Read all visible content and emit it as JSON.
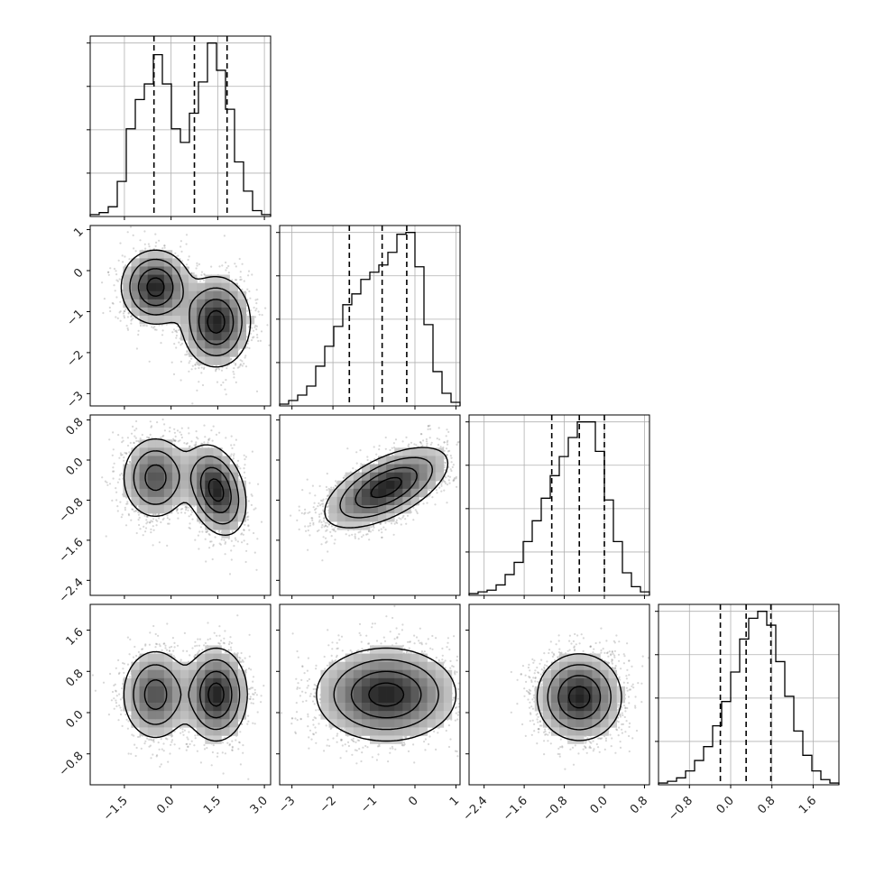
{
  "chart_data": {
    "type": "corner",
    "n_params": 4,
    "params": [
      {
        "range": [
          -2.6,
          3.2
        ],
        "ticks": [
          -1.5,
          0.0,
          1.5,
          3.0
        ],
        "tick_labels": [
          "−1.5",
          "0.0",
          "1.5",
          "3.0"
        ],
        "quantiles": [
          -0.55,
          0.75,
          1.8
        ],
        "hist": {
          "edges": [
            -2.6,
            -2.31,
            -2.02,
            -1.73,
            -1.44,
            -1.15,
            -0.86,
            -0.57,
            -0.28,
            0.01,
            0.3,
            0.59,
            0.88,
            1.17,
            1.46,
            1.75,
            2.04,
            2.33,
            2.62,
            2.91,
            3.2
          ],
          "counts": [
            1,
            2,
            5,
            18,
            45,
            60,
            68,
            83,
            68,
            45,
            38,
            53,
            69,
            89,
            75,
            55,
            28,
            13,
            3,
            1
          ]
        }
      },
      {
        "range": [
          -3.3,
          1.1
        ],
        "ticks": [
          -3,
          -2,
          -1,
          0,
          1
        ],
        "tick_labels": [
          "−3",
          "−2",
          "−1",
          "0",
          "1"
        ],
        "quantiles": [
          -1.6,
          -0.8,
          -0.2
        ],
        "hist": {
          "edges": [
            -3.3,
            -3.08,
            -2.86,
            -2.64,
            -2.42,
            -2.2,
            -1.98,
            -1.76,
            -1.54,
            -1.32,
            -1.1,
            -0.88,
            -0.66,
            -0.44,
            -0.22,
            0.0,
            0.22,
            0.44,
            0.66,
            0.88,
            1.1
          ],
          "counts": [
            1,
            3,
            6,
            11,
            22,
            33,
            44,
            56,
            62,
            70,
            74,
            78,
            85,
            95,
            96,
            77,
            45,
            19,
            7,
            2
          ]
        }
      },
      {
        "range": [
          -2.7,
          0.9
        ],
        "ticks": [
          -2.4,
          -1.6,
          -0.8,
          0.0,
          0.8
        ],
        "tick_labels": [
          "−2.4",
          "−1.6",
          "−0.8",
          "0.0",
          "0.8"
        ],
        "quantiles": [
          -1.05,
          -0.5,
          0.0
        ],
        "hist": {
          "edges": [
            -2.7,
            -2.52,
            -2.34,
            -2.16,
            -1.98,
            -1.8,
            -1.62,
            -1.44,
            -1.26,
            -1.08,
            -0.9,
            -0.72,
            -0.54,
            -0.36,
            -0.18,
            0.0,
            0.18,
            0.36,
            0.54,
            0.72,
            0.9
          ],
          "counts": [
            1,
            2,
            3,
            6,
            12,
            19,
            31,
            43,
            56,
            69,
            80,
            91,
            100,
            100,
            83,
            55,
            31,
            13,
            5,
            2
          ]
        }
      },
      {
        "range": [
          -1.4,
          2.1
        ],
        "ticks": [
          -0.8,
          0.0,
          0.8,
          1.6
        ],
        "tick_labels": [
          "−0.8",
          "0.0",
          "0.8",
          "1.6"
        ],
        "quantiles": [
          -0.2,
          0.3,
          0.78
        ],
        "hist": {
          "edges": [
            -1.4,
            -1.225,
            -1.05,
            -0.875,
            -0.7,
            -0.525,
            -0.35,
            -0.175,
            0.0,
            0.175,
            0.35,
            0.525,
            0.7,
            0.875,
            1.05,
            1.225,
            1.4,
            1.575,
            1.75,
            1.925,
            2.1
          ],
          "counts": [
            1,
            2,
            4,
            8,
            14,
            22,
            34,
            48,
            65,
            84,
            96,
            100,
            92,
            71,
            51,
            31,
            17,
            8,
            3,
            1
          ]
        }
      }
    ],
    "pairs": [
      {
        "x": 0,
        "y": 1,
        "components": [
          {
            "mx": -0.5,
            "my": -0.4,
            "sx": 0.55,
            "sy": 0.45,
            "rho": 0.0,
            "w": 0.45
          },
          {
            "mx": 1.45,
            "my": -1.25,
            "sx": 0.55,
            "sy": 0.55,
            "rho": 0.0,
            "w": 0.55
          }
        ]
      },
      {
        "x": 0,
        "y": 2,
        "components": [
          {
            "mx": -0.5,
            "my": -0.35,
            "sx": 0.55,
            "sy": 0.42,
            "rho": 0.0,
            "w": 0.45
          },
          {
            "mx": 1.45,
            "my": -0.6,
            "sx": 0.48,
            "sy": 0.45,
            "rho": -0.3,
            "w": 0.55
          }
        ]
      },
      {
        "x": 1,
        "y": 2,
        "components": [
          {
            "mx": -0.7,
            "my": -0.55,
            "sx": 0.75,
            "sy": 0.4,
            "rho": 0.6,
            "w": 1.0
          }
        ]
      },
      {
        "x": 0,
        "y": 3,
        "components": [
          {
            "mx": -0.5,
            "my": 0.35,
            "sx": 0.55,
            "sy": 0.45,
            "rho": 0.0,
            "w": 0.45
          },
          {
            "mx": 1.45,
            "my": 0.35,
            "sx": 0.5,
            "sy": 0.45,
            "rho": 0.0,
            "w": 0.55
          }
        ]
      },
      {
        "x": 1,
        "y": 3,
        "components": [
          {
            "mx": -0.7,
            "my": 0.35,
            "sx": 0.85,
            "sy": 0.45,
            "rho": 0.0,
            "w": 1.0
          }
        ]
      },
      {
        "x": 2,
        "y": 3,
        "components": [
          {
            "mx": -0.5,
            "my": 0.3,
            "sx": 0.42,
            "sy": 0.42,
            "rho": 0.0,
            "w": 1.0
          }
        ]
      }
    ],
    "contour_levels_sigma": [
      0.5,
      1.0,
      1.5,
      2.0
    ],
    "grid": true,
    "colors": {
      "points": "#6f6f6f",
      "density": "#000000",
      "lines": "#000000",
      "grid": "#b0b0b0"
    }
  }
}
